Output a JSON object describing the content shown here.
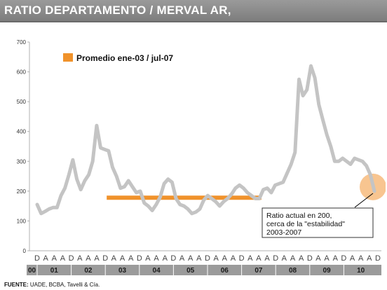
{
  "header": {
    "title": "RATIO DEPARTAMENTO / MERVAL AR,"
  },
  "footer": {
    "source_label": "FUENTE:",
    "source_text": "UADE, BCBA, Tavelli & Cía."
  },
  "colors": {
    "series": "#c4c4c4",
    "average": "#f0922b",
    "highlight": "#f6b26b",
    "title_bar": "#8c8c8c",
    "year_band": "#9b9b9b"
  },
  "chart_data": {
    "type": "line",
    "ylim": [
      0,
      700
    ],
    "yticks": [
      0,
      100,
      200,
      300,
      400,
      500,
      600,
      700
    ],
    "grid": false,
    "legend_position": "top-left",
    "x_tick_labels": [
      "D",
      "A",
      "A",
      "A",
      "D",
      "A",
      "A",
      "A",
      "D",
      "A",
      "A",
      "A",
      "D",
      "A",
      "A",
      "A",
      "D",
      "A",
      "A",
      "A",
      "D",
      "A",
      "A",
      "A",
      "D",
      "A",
      "A",
      "A",
      "D",
      "A",
      "A",
      "A",
      "D",
      "A",
      "A",
      "A",
      "D",
      "A",
      "A",
      "A",
      "D"
    ],
    "year_labels": [
      "00",
      "01",
      "02",
      "03",
      "04",
      "05",
      "06",
      "07",
      "08",
      "09",
      "10"
    ],
    "series": [
      {
        "values": [
          155,
          125,
          132,
          140,
          145,
          145,
          185,
          210,
          255,
          305,
          240,
          205,
          235,
          255,
          300,
          420,
          345,
          340,
          335,
          280,
          250,
          210,
          215,
          235,
          215,
          195,
          200,
          160,
          150,
          135,
          155,
          180,
          225,
          240,
          230,
          175,
          155,
          150,
          140,
          125,
          130,
          140,
          170,
          185,
          175,
          165,
          150,
          165,
          175,
          190,
          210,
          220,
          210,
          195,
          185,
          175,
          175,
          205,
          210,
          195,
          220,
          225,
          230,
          260,
          290,
          330,
          575,
          520,
          540,
          620,
          580,
          490,
          440,
          390,
          350,
          300,
          300,
          310,
          300,
          290,
          310,
          305,
          300,
          285,
          255,
          200
        ]
      }
    ],
    "average": {
      "label": "Promedio ene-03 / jul-07",
      "value": 178,
      "x_start": "ene-03",
      "x_end": "jul-07"
    },
    "annotations": [
      {
        "text_lines": [
          "Ratio actual en 200,",
          "cerca de la \"estabilidad\"",
          "2003-2007"
        ]
      }
    ]
  }
}
